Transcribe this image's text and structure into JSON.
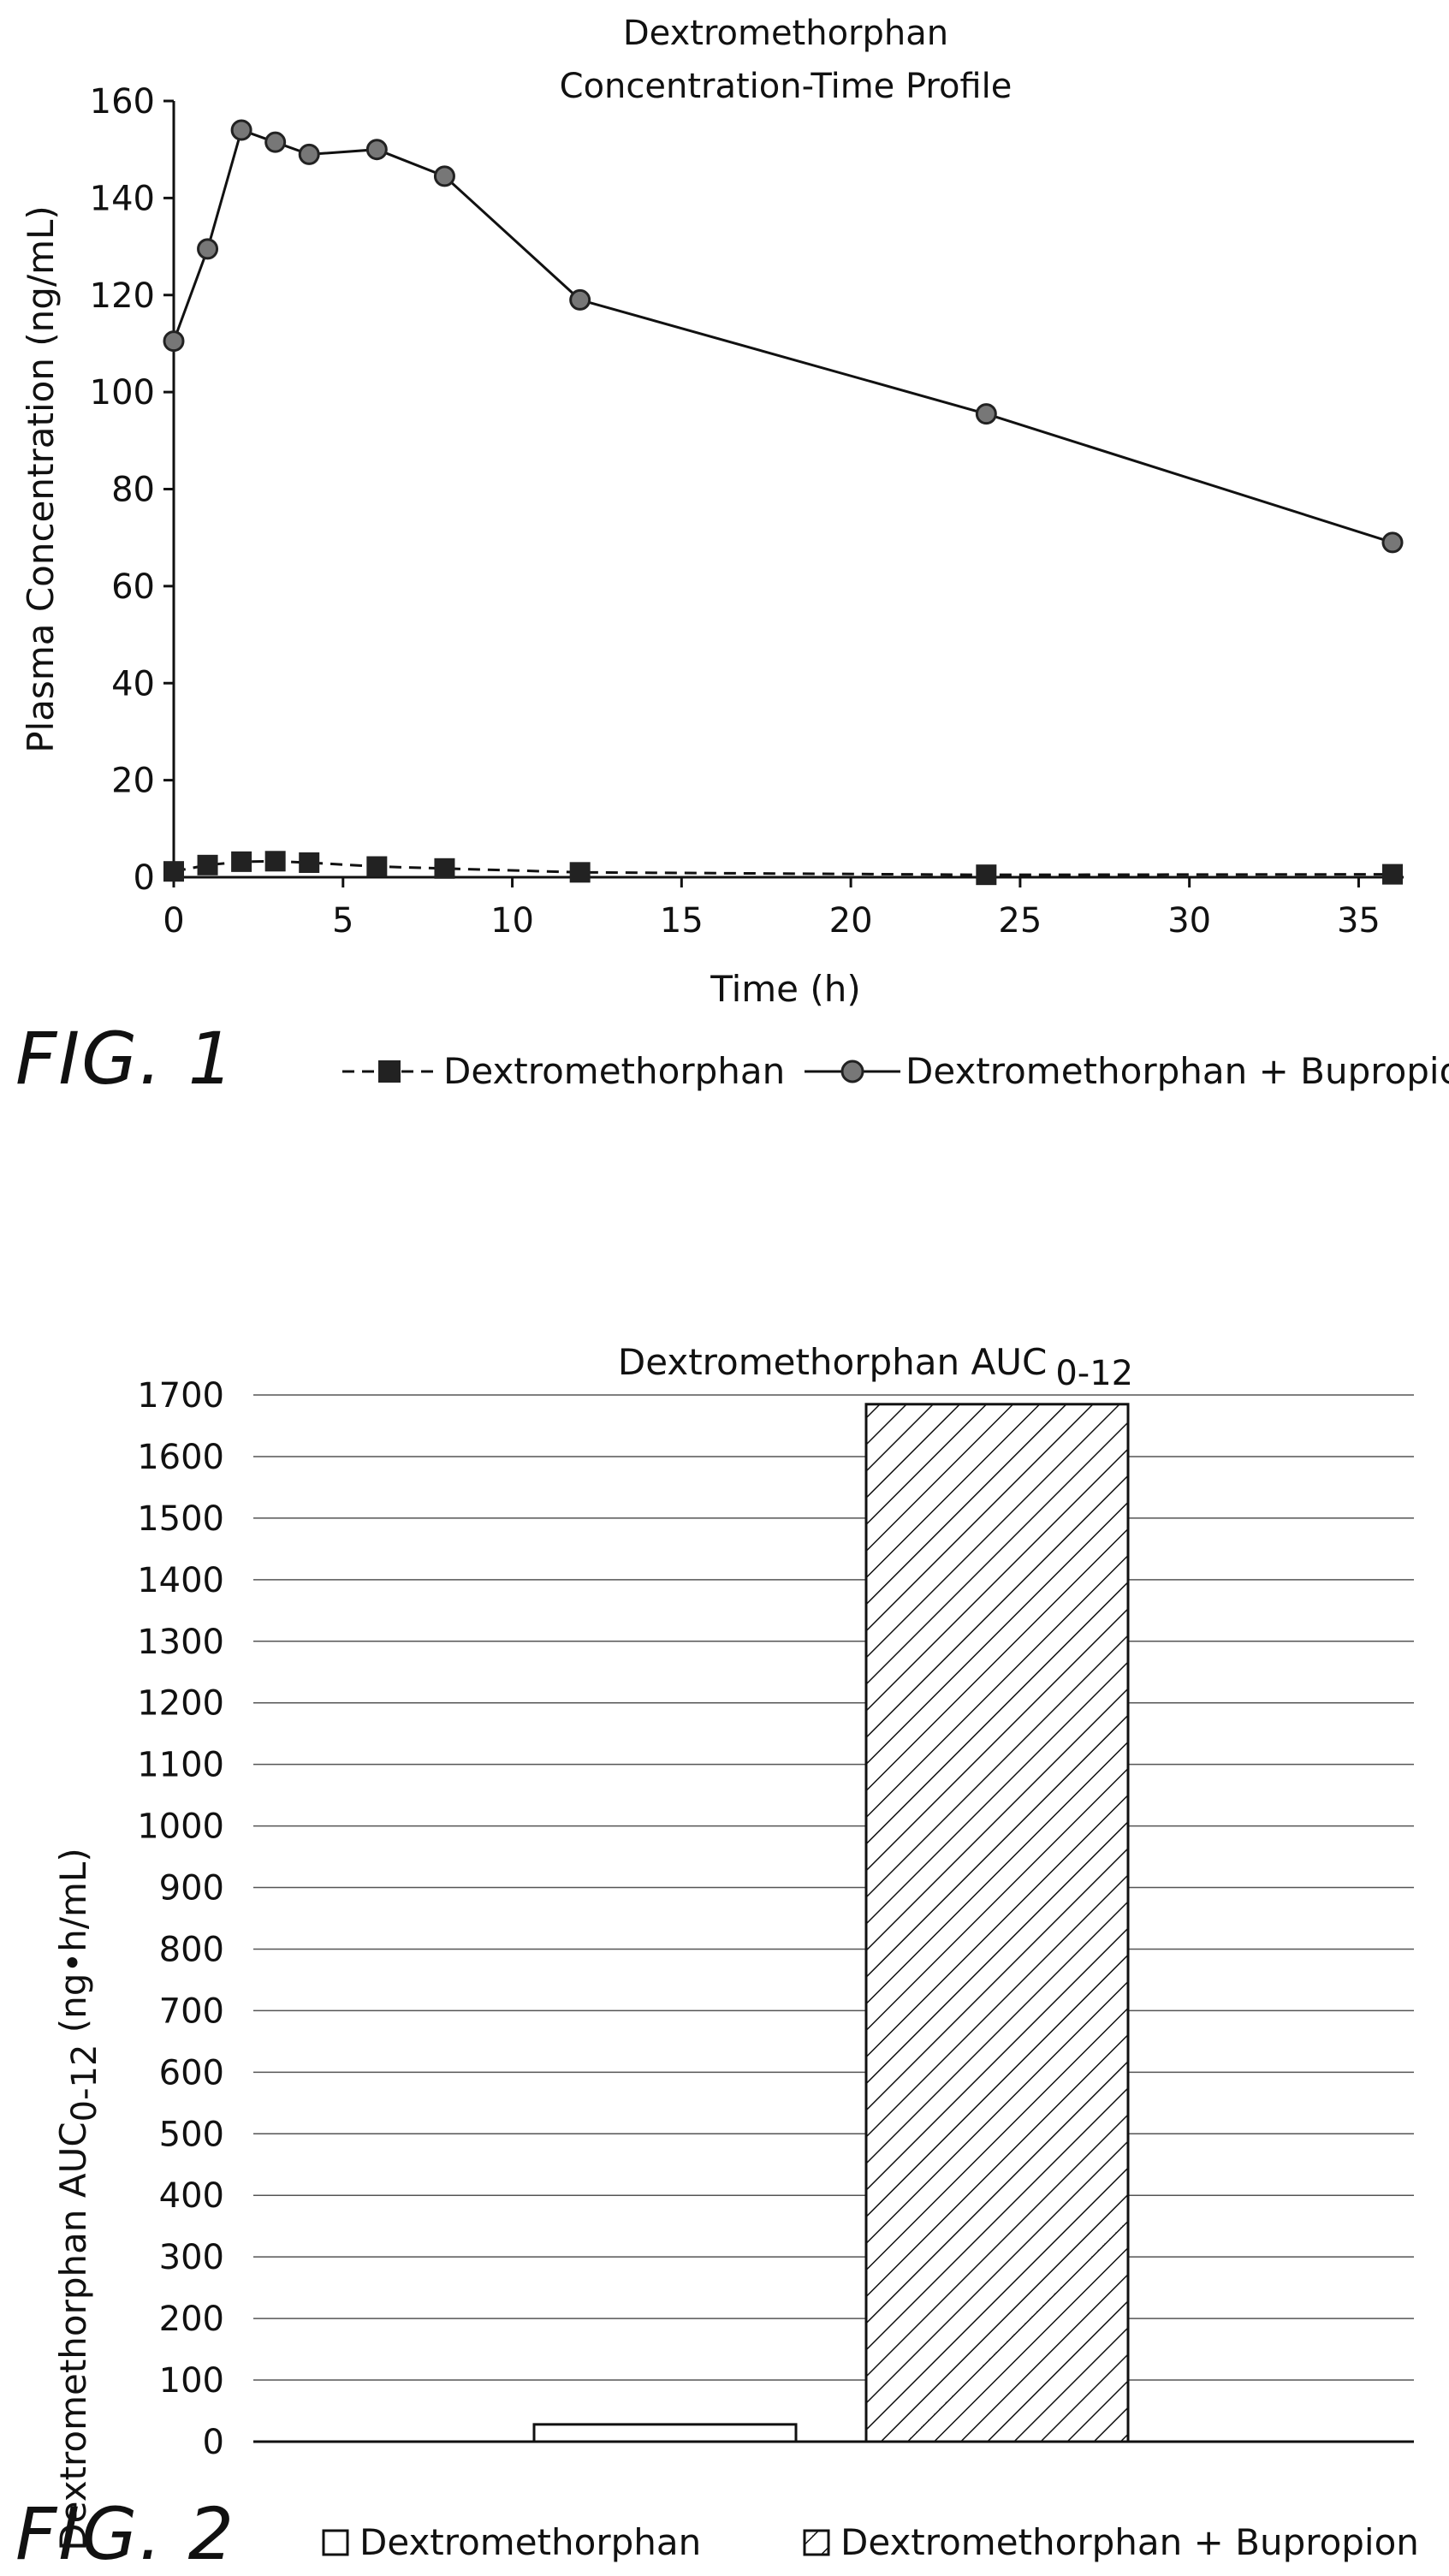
{
  "chart_data": [
    {
      "type": "line",
      "title": "Dextromethorphan",
      "subtitle": "Concentration-Time Profile",
      "xlabel": "Time (h)",
      "ylabel": "Plasma Concentration (ng/mL)",
      "xlim": [
        0,
        36
      ],
      "ylim": [
        0,
        160
      ],
      "x_ticks": [
        "0",
        "5",
        "10",
        "15",
        "20",
        "25",
        "30",
        "35"
      ],
      "y_ticks": [
        "0",
        "20",
        "40",
        "60",
        "80",
        "100",
        "120",
        "140",
        "160"
      ],
      "grid": false,
      "legend": "bottom",
      "figure_label": "FIG. 1",
      "series": [
        {
          "name": "Dextromethorphan",
          "marker": "square",
          "line": "dashed",
          "x": [
            0,
            1,
            2,
            3,
            4,
            6,
            8,
            12,
            24,
            36
          ],
          "y": [
            1.2,
            2.5,
            3.2,
            3.3,
            3.0,
            2.2,
            1.8,
            1.0,
            0.5,
            0.6
          ]
        },
        {
          "name": "Dextromethorphan + Bupropion",
          "marker": "circle",
          "line": "solid",
          "x": [
            0,
            1,
            2,
            3,
            4,
            6,
            8,
            12,
            24,
            36
          ],
          "y": [
            110.5,
            129.5,
            154,
            151.5,
            149,
            150,
            144.5,
            119,
            95.5,
            69
          ]
        }
      ]
    },
    {
      "type": "bar",
      "title_main": "Dextromethorphan AUC",
      "title_sub": "0-12",
      "ylabel_main": "Dextromethorphan AUC",
      "ylabel_sub": "0-12",
      "ylabel_unit": " (ng•h/mL)",
      "ylim": [
        0,
        1700
      ],
      "y_ticks": [
        "0",
        "100",
        "200",
        "300",
        "400",
        "500",
        "600",
        "700",
        "800",
        "900",
        "1000",
        "1100",
        "1200",
        "1300",
        "1400",
        "1500",
        "1600",
        "1700"
      ],
      "grid": true,
      "legend": "bottom",
      "figure_label": "FIG. 2",
      "categories": [
        "Dextromethorphan",
        "Dextromethorphan + Bupropion"
      ],
      "values": [
        28,
        1685
      ],
      "series_fill": [
        "plain",
        "hatched"
      ]
    }
  ]
}
